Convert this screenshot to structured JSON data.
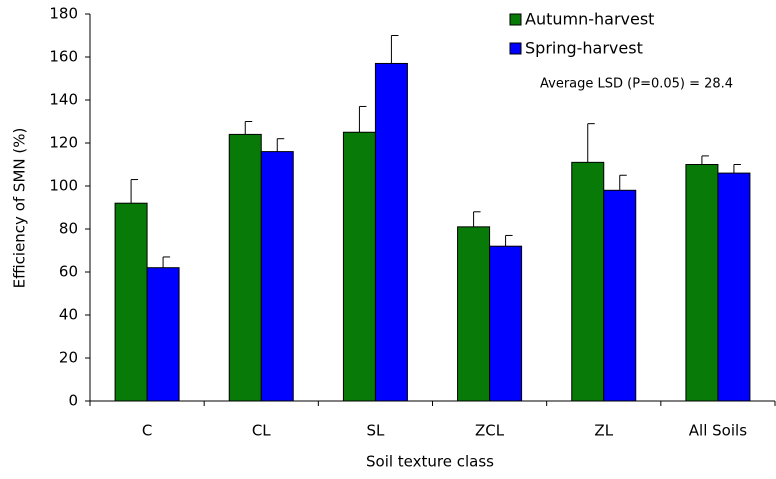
{
  "chart_data": {
    "type": "bar",
    "x_label": "Soil texture class",
    "y_label": "Efficiency of SMN (%)",
    "annotation": "Average LSD (P=0.05) = 28.4",
    "categories": [
      "C",
      "CL",
      "SL",
      "ZCL",
      "ZL",
      "All Soils"
    ],
    "series": [
      {
        "name": "Autumn-harvest",
        "color": "#077a07",
        "values": [
          92,
          124,
          125,
          81,
          111,
          110
        ],
        "errors": [
          11,
          6,
          12,
          7,
          18,
          4
        ]
      },
      {
        "name": "Spring-harvest",
        "color": "#0000ff",
        "values": [
          62,
          116,
          157,
          72,
          98,
          106
        ],
        "errors": [
          5,
          6,
          13,
          5,
          7,
          4
        ]
      }
    ],
    "ylim": [
      0,
      180
    ],
    "yticks": [
      0,
      20,
      40,
      60,
      80,
      100,
      120,
      140,
      160,
      180
    ],
    "legend": "top-right"
  }
}
